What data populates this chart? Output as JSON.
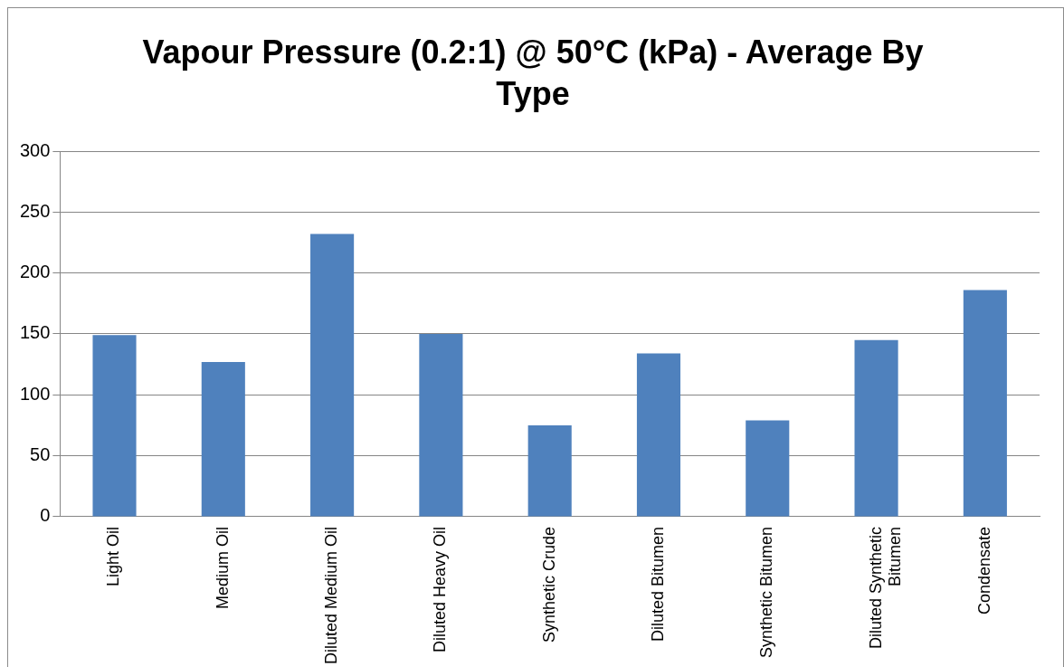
{
  "chart_data": {
    "type": "bar",
    "title": "Vapour Pressure (0.2:1) @ 50°C (kPa) - Average By Type",
    "categories": [
      "Light Oil",
      "Medium Oil",
      "Diluted Medium Oil",
      "Diluted Heavy Oil",
      "Synthetic Crude",
      "Diluted Bitumen",
      "Synthetic Bitumen",
      "Diluted Synthetic Bitumen",
      "Condensate"
    ],
    "values": [
      149,
      127,
      232,
      150,
      75,
      134,
      79,
      145,
      186
    ],
    "color": "#4f81bd",
    "ylim": [
      0,
      300
    ],
    "yticks": [
      0,
      50,
      100,
      150,
      200,
      250,
      300
    ],
    "grid": "y",
    "legend": false
  }
}
